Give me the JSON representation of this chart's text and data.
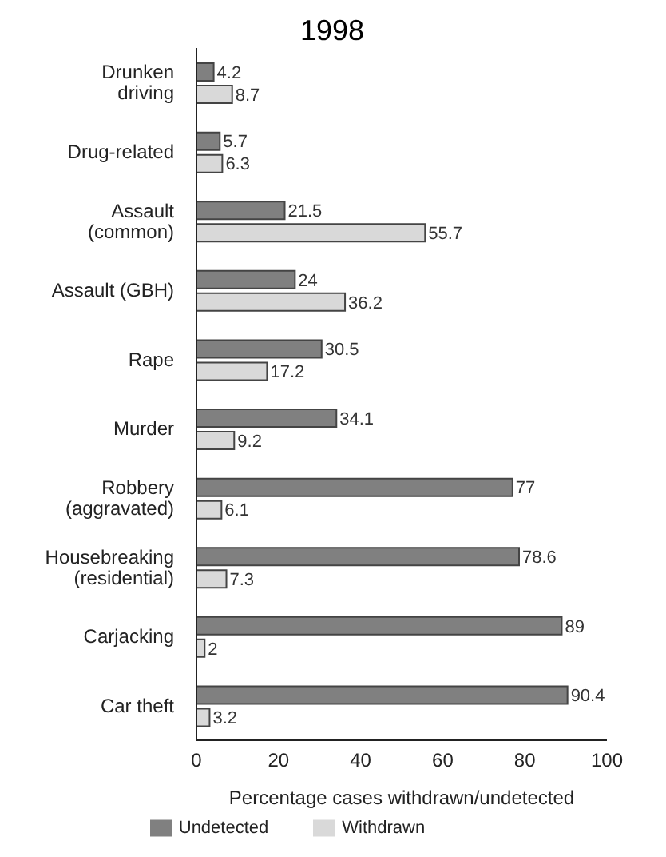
{
  "chart_data": {
    "type": "bar",
    "orientation": "horizontal",
    "title": "1998",
    "categories": [
      "Drunken\ndriving",
      "Drug-related",
      "Assault\n(common)",
      "Assault (GBH)",
      "Rape",
      "Murder",
      "Robbery\n(aggravated)",
      "Housebreaking\n(residential)",
      "Carjacking",
      "Car theft"
    ],
    "series": [
      {
        "name": "Undetected",
        "color": "#808080",
        "values": [
          4.2,
          5.7,
          21.5,
          24,
          30.5,
          34.1,
          77,
          78.6,
          89,
          90.4
        ]
      },
      {
        "name": "Withdrawn",
        "color": "#d9d9d9",
        "values": [
          8.7,
          6.3,
          55.7,
          36.2,
          17.2,
          9.2,
          6.1,
          7.3,
          2,
          3.2
        ]
      }
    ],
    "xlim": [
      0,
      100
    ],
    "xticks": [
      0,
      20,
      40,
      60,
      80,
      100
    ],
    "xlabel": "Percentage cases withdrawn/undetected",
    "data_labels": true,
    "grid": false,
    "legend": "bottom"
  }
}
